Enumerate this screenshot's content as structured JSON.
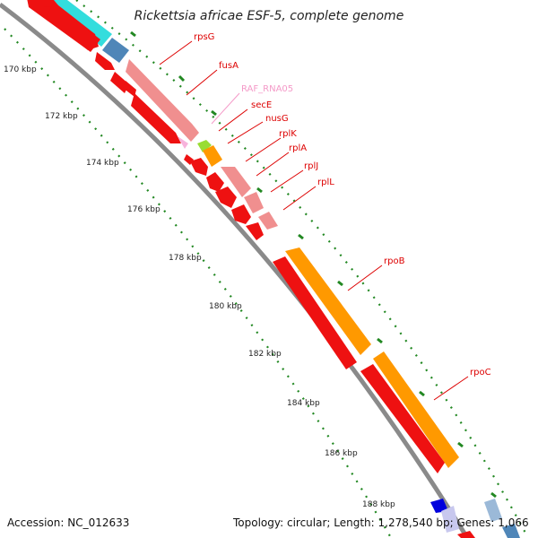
{
  "title": "Rickettsia africae ESF-5, complete genome",
  "footer": {
    "accession": "Accession: NC_012633",
    "topology": "Topology: circular; Length: 1,278,540 bp; Genes: 1,066"
  },
  "scale_labels": [
    "170 kbp",
    "172 kbp",
    "174 kbp",
    "176 kbp",
    "178 kbp",
    "180 kbp",
    "182 kbp",
    "184 kbp",
    "186 kbp",
    "188 kbp"
  ],
  "gene_labels": [
    {
      "name": "rpsG",
      "color": "#dd0000"
    },
    {
      "name": "fusA",
      "color": "#dd0000"
    },
    {
      "name": "RAF_RNA05",
      "color": "#f49ac8"
    },
    {
      "name": "secE",
      "color": "#dd0000"
    },
    {
      "name": "nusG",
      "color": "#dd0000"
    },
    {
      "name": "rplK",
      "color": "#dd0000"
    },
    {
      "name": "rplA",
      "color": "#dd0000"
    },
    {
      "name": "rplJ",
      "color": "#dd0000"
    },
    {
      "name": "rplL",
      "color": "#dd0000"
    },
    {
      "name": "rpoB",
      "color": "#dd0000"
    },
    {
      "name": "rpoC",
      "color": "#dd0000"
    }
  ],
  "colors": {
    "cds": "#ee1111",
    "cds_light": "#f08f8f",
    "orange": "#ff9900",
    "cyan": "#33dddd",
    "steel": "#4f86b8",
    "light_green": "#99dd33",
    "pink": "#f7b3dc",
    "blue": "#0000dd",
    "backbone": "#888888",
    "ticks": "#228822"
  }
}
